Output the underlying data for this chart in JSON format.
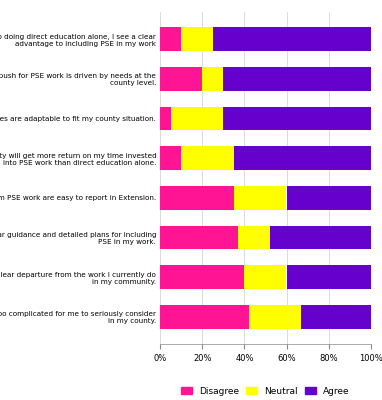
{
  "categories": [
    "Compared to doing direct education alone, I see a clear\nadvantage to including PSE in my work",
    "The push for PSE work is driven by needs at the\ncounty level.",
    "PSE approaches are adaptable to fit my county situation.",
    "My county will get more return on my time invested\ninto PSE work than direct education alone.",
    "Outcomes from PSE work are easy to report in Extension.",
    "There is clear guidance and detailed plans for including\nPSE in my work.",
    "PSE is a clear departure from the work I currently do\nin my community.",
    "PSE is too complicated for me to seriously consider\nin my county."
  ],
  "disagree": [
    10,
    20,
    5,
    10,
    35,
    37,
    40,
    42
  ],
  "neutral": [
    15,
    10,
    25,
    25,
    25,
    15,
    20,
    25
  ],
  "agree": [
    75,
    70,
    70,
    65,
    40,
    48,
    40,
    33
  ],
  "disagree_color": "#FF1493",
  "neutral_color": "#FFFF00",
  "agree_color": "#6600CC",
  "background_color": "#FFFFFF",
  "bar_height": 0.6,
  "xlim": [
    0,
    100
  ],
  "xlabel_ticks": [
    0,
    20,
    40,
    60,
    80,
    100
  ],
  "xlabel_ticklabels": [
    "0%",
    "20%",
    "40%",
    "60%",
    "80%",
    "100%"
  ],
  "legend_labels": [
    "Disagree",
    "Neutral",
    "Agree"
  ],
  "label_fontsize": 5.2,
  "tick_fontsize": 6.0
}
